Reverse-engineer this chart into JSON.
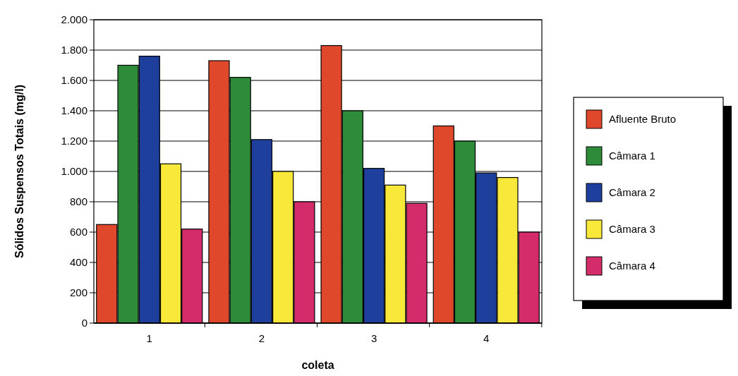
{
  "chart_data": {
    "type": "bar",
    "xlabel": "coleta",
    "ylabel": "Sólidos Suspensos Totais (mg/l)",
    "categories": [
      "1",
      "2",
      "3",
      "4"
    ],
    "series": [
      {
        "name": "Afluente Bruto",
        "color": "#e0482c",
        "values": [
          650,
          1730,
          1830,
          1300
        ]
      },
      {
        "name": "Câmara 1",
        "color": "#2e8b3a",
        "values": [
          1700,
          1620,
          1400,
          1200
        ]
      },
      {
        "name": "Câmara 2",
        "color": "#1f3f9c",
        "values": [
          1760,
          1210,
          1020,
          990
        ]
      },
      {
        "name": "Câmara 3",
        "color": "#f8e83a",
        "values": [
          1050,
          1000,
          910,
          960
        ]
      },
      {
        "name": "Câmara 4",
        "color": "#d42c6a",
        "values": [
          620,
          800,
          790,
          600
        ]
      }
    ],
    "ylim": [
      0,
      2000
    ],
    "yticks": [
      {
        "value": 0,
        "label": "0"
      },
      {
        "value": 200,
        "label": "200"
      },
      {
        "value": 400,
        "label": "400"
      },
      {
        "value": 600,
        "label": "600"
      },
      {
        "value": 800,
        "label": "800"
      },
      {
        "value": 1000,
        "label": "1.000"
      },
      {
        "value": 1200,
        "label": "1.200"
      },
      {
        "value": 1400,
        "label": "1.400"
      },
      {
        "value": 1600,
        "label": "1.600"
      },
      {
        "value": 1800,
        "label": "1.800"
      },
      {
        "value": 2000,
        "label": "2.000"
      }
    ],
    "grid": "y",
    "legend": "right"
  }
}
